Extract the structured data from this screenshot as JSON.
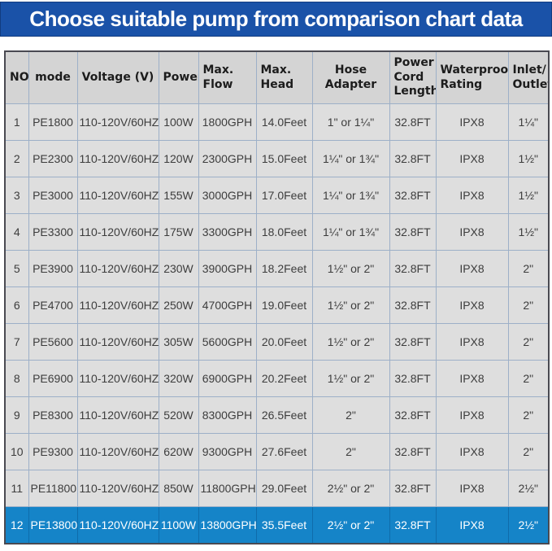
{
  "banner": {
    "title": "Choose suitable pump from comparison chart data"
  },
  "colors": {
    "banner_bg": "#1a52a8",
    "banner_text": "#ffffff",
    "header_bg": "#d4d4d4",
    "row_bg": "#dedede",
    "grid_line": "#9db0c8",
    "outer_border": "#4a4a52",
    "highlight_bg": "#1584c8",
    "highlight_text": "#ffffff"
  },
  "chart_data": {
    "type": "table",
    "title": "Choose suitable pump from comparison chart data",
    "columns": [
      "NO",
      "mode",
      "Voltage (V)",
      "Power",
      "Max.\nFlow",
      "Max.\nHead",
      "Hose Adapter",
      "Power\nCord\nLength",
      "Waterproof\nRating",
      "Inlet/\nOutlet"
    ],
    "rows": [
      [
        "1",
        "PE1800",
        "110-120V/60HZ",
        "100W",
        "1800GPH",
        "14.0Feet",
        "1\" or 1¼\"",
        "32.8FT",
        "IPX8",
        "1¼\""
      ],
      [
        "2",
        "PE2300",
        "110-120V/60HZ",
        "120W",
        "2300GPH",
        "15.0Feet",
        "1¼\" or 1¾\"",
        "32.8FT",
        "IPX8",
        "1½\""
      ],
      [
        "3",
        "PE3000",
        "110-120V/60HZ",
        "155W",
        "3000GPH",
        "17.0Feet",
        "1¼\" or 1¾\"",
        "32.8FT",
        "IPX8",
        "1½\""
      ],
      [
        "4",
        "PE3300",
        "110-120V/60HZ",
        "175W",
        "3300GPH",
        "18.0Feet",
        "1¼\" or 1¾\"",
        "32.8FT",
        "IPX8",
        "1½\""
      ],
      [
        "5",
        "PE3900",
        "110-120V/60HZ",
        "230W",
        "3900GPH",
        "18.2Feet",
        "1½\" or 2\"",
        "32.8FT",
        "IPX8",
        "2\""
      ],
      [
        "6",
        "PE4700",
        "110-120V/60HZ",
        "250W",
        "4700GPH",
        "19.0Feet",
        "1½\" or 2\"",
        "32.8FT",
        "IPX8",
        "2\""
      ],
      [
        "7",
        "PE5600",
        "110-120V/60HZ",
        "305W",
        "5600GPH",
        "20.0Feet",
        "1½\" or 2\"",
        "32.8FT",
        "IPX8",
        "2\""
      ],
      [
        "8",
        "PE6900",
        "110-120V/60HZ",
        "320W",
        "6900GPH",
        "20.2Feet",
        "1½\" or 2\"",
        "32.8FT",
        "IPX8",
        "2\""
      ],
      [
        "9",
        "PE8300",
        "110-120V/60HZ",
        "520W",
        "8300GPH",
        "26.5Feet",
        "2\"",
        "32.8FT",
        "IPX8",
        "2\""
      ],
      [
        "10",
        "PE9300",
        "110-120V/60HZ",
        "620W",
        "9300GPH",
        "27.6Feet",
        "2\"",
        "32.8FT",
        "IPX8",
        "2\""
      ],
      [
        "11",
        "PE11800",
        "110-120V/60HZ",
        "850W",
        "11800GPH",
        "29.0Feet",
        "2½\" or 2\"",
        "32.8FT",
        "IPX8",
        "2½\""
      ],
      [
        "12",
        "PE13800",
        "110-120V/60HZ",
        "1100W",
        "13800GPH",
        "35.5Feet",
        "2½\" or 2\"",
        "32.8FT",
        "IPX8",
        "2½\""
      ]
    ],
    "highlighted_row": 12
  }
}
